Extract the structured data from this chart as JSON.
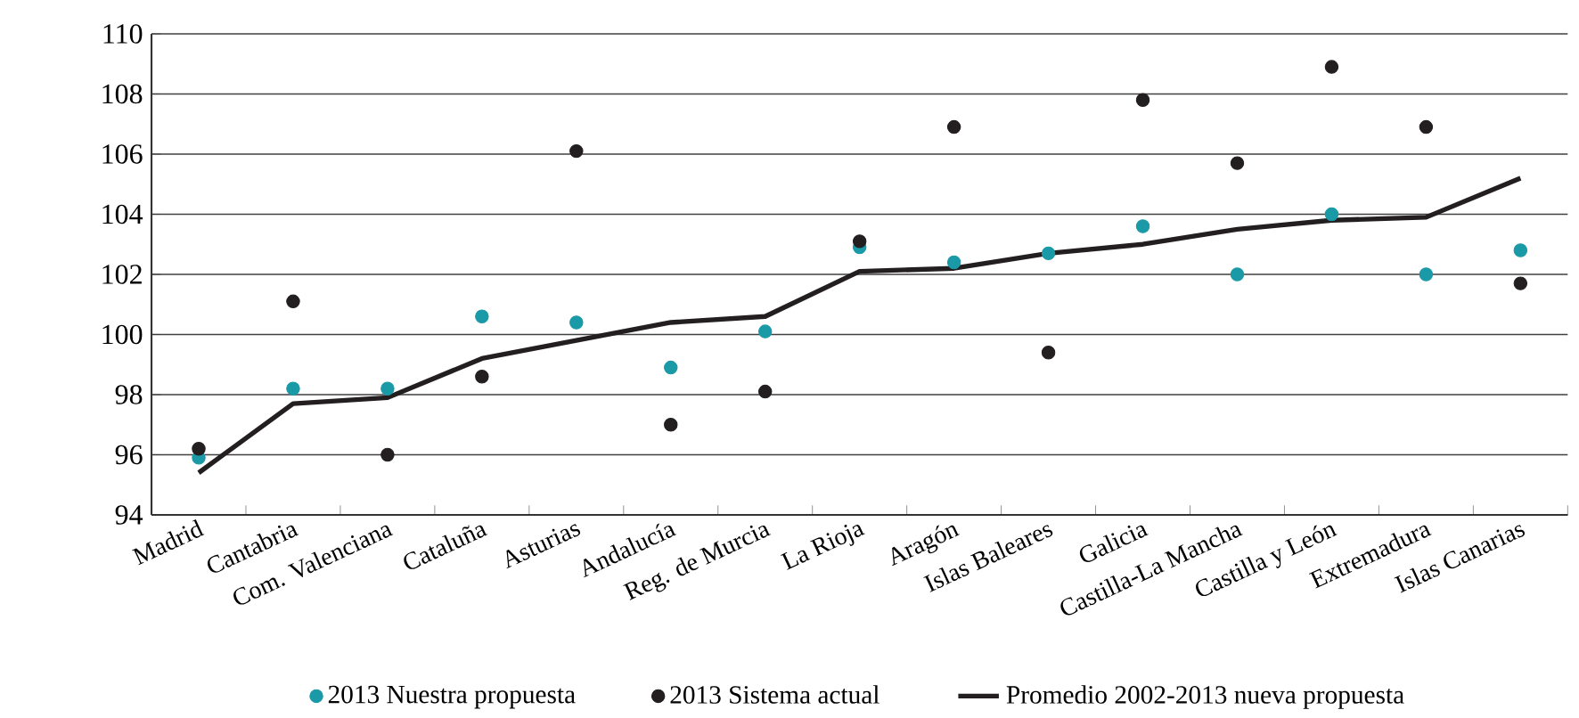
{
  "chart_data": {
    "type": "scatter",
    "categories": [
      "Madrid",
      "Cantabria",
      "Com. Valenciana",
      "Cataluña",
      "Asturias",
      "Andalucía",
      "Reg. de Murcia",
      "La Rioja",
      "Aragón",
      "Islas Baleares",
      "Galicia",
      "Castilla-La Mancha",
      "Castilla y León",
      "Extremadura",
      "Islas Canarias"
    ],
    "series": [
      {
        "name": "2013 Nuestra propuesta",
        "marker": "circle",
        "color": "#1a9aa6",
        "values": [
          95.9,
          98.2,
          98.2,
          100.6,
          100.4,
          98.9,
          100.1,
          102.9,
          102.4,
          102.7,
          103.6,
          102.0,
          104.0,
          102.0,
          102.8
        ]
      },
      {
        "name": "2013 Sistema actual",
        "marker": "circle",
        "color": "#231f20",
        "values": [
          96.2,
          101.1,
          96.0,
          98.6,
          106.1,
          97.0,
          98.1,
          103.1,
          106.9,
          99.4,
          107.8,
          105.7,
          108.9,
          106.9,
          101.7
        ]
      },
      {
        "name": "Promedio 2002-2013 nueva propuesta",
        "type": "line",
        "marker": "none",
        "line_style": "solid",
        "color": "#231f20",
        "values": [
          95.4,
          97.7,
          97.9,
          99.2,
          99.8,
          100.4,
          100.6,
          102.1,
          102.2,
          102.7,
          103.0,
          103.5,
          103.8,
          103.9,
          105.2
        ]
      }
    ],
    "ylim": [
      94,
      110
    ],
    "yticks": [
      94,
      96,
      98,
      100,
      102,
      104,
      106,
      108,
      110
    ],
    "grid": "y",
    "legend": "bottom"
  }
}
